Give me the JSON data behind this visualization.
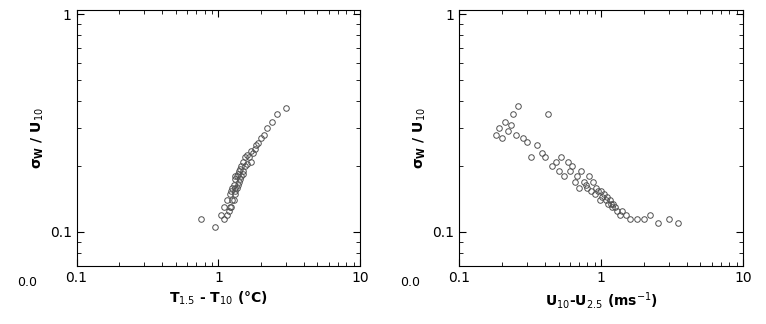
{
  "plot1": {
    "xlabel": "T$_{1.5}$ - T$_{10}$ (°C)",
    "ylabel": "$\\mathbf{\\sigma_W}$ / U$_{10}$",
    "xlim": [
      0.1,
      10
    ],
    "ylim": [
      0.07,
      1.05
    ],
    "x_data": [
      0.75,
      0.95,
      1.05,
      1.1,
      1.1,
      1.15,
      1.15,
      1.18,
      1.2,
      1.2,
      1.22,
      1.22,
      1.25,
      1.25,
      1.28,
      1.28,
      1.3,
      1.3,
      1.3,
      1.32,
      1.32,
      1.35,
      1.35,
      1.38,
      1.38,
      1.4,
      1.4,
      1.42,
      1.42,
      1.45,
      1.45,
      1.48,
      1.5,
      1.5,
      1.55,
      1.55,
      1.6,
      1.6,
      1.65,
      1.7,
      1.7,
      1.75,
      1.8,
      1.85,
      1.9,
      2.0,
      2.1,
      2.2,
      2.4,
      2.6,
      3.0
    ],
    "y_data": [
      0.115,
      0.105,
      0.12,
      0.115,
      0.13,
      0.12,
      0.14,
      0.125,
      0.13,
      0.15,
      0.13,
      0.155,
      0.14,
      0.16,
      0.14,
      0.165,
      0.15,
      0.16,
      0.18,
      0.155,
      0.175,
      0.16,
      0.18,
      0.165,
      0.185,
      0.17,
      0.19,
      0.175,
      0.195,
      0.18,
      0.2,
      0.185,
      0.19,
      0.21,
      0.2,
      0.22,
      0.205,
      0.225,
      0.22,
      0.21,
      0.235,
      0.23,
      0.24,
      0.25,
      0.255,
      0.27,
      0.28,
      0.3,
      0.32,
      0.35,
      0.37
    ]
  },
  "plot2": {
    "xlabel": "U$_{10}$-U$_{2.5}$ (ms$^{-1}$)",
    "ylabel": "$\\mathbf{\\sigma_W}$ / U$_{10}$",
    "xlim": [
      0.1,
      10
    ],
    "ylim": [
      0.07,
      1.05
    ],
    "x_data": [
      0.18,
      0.19,
      0.2,
      0.21,
      0.22,
      0.23,
      0.24,
      0.25,
      0.26,
      0.28,
      0.3,
      0.32,
      0.35,
      0.38,
      0.4,
      0.42,
      0.45,
      0.48,
      0.5,
      0.52,
      0.55,
      0.58,
      0.6,
      0.62,
      0.65,
      0.68,
      0.7,
      0.72,
      0.75,
      0.78,
      0.8,
      0.82,
      0.85,
      0.88,
      0.9,
      0.92,
      0.95,
      0.98,
      1.0,
      1.02,
      1.05,
      1.08,
      1.1,
      1.12,
      1.15,
      1.18,
      1.2,
      1.22,
      1.25,
      1.3,
      1.35,
      1.4,
      1.5,
      1.6,
      1.8,
      2.0,
      2.2,
      2.5,
      3.0,
      3.5
    ],
    "y_data": [
      0.28,
      0.3,
      0.27,
      0.32,
      0.29,
      0.31,
      0.35,
      0.28,
      0.38,
      0.27,
      0.26,
      0.22,
      0.25,
      0.23,
      0.22,
      0.35,
      0.2,
      0.21,
      0.19,
      0.22,
      0.18,
      0.21,
      0.19,
      0.2,
      0.17,
      0.18,
      0.16,
      0.19,
      0.17,
      0.165,
      0.16,
      0.18,
      0.155,
      0.17,
      0.15,
      0.16,
      0.155,
      0.14,
      0.155,
      0.145,
      0.15,
      0.14,
      0.145,
      0.135,
      0.14,
      0.135,
      0.13,
      0.135,
      0.13,
      0.125,
      0.12,
      0.125,
      0.12,
      0.115,
      0.115,
      0.115,
      0.12,
      0.11,
      0.115,
      0.11
    ]
  },
  "marker": "o",
  "marker_size": 4,
  "marker_face_color": "none",
  "marker_edge_color": "#505050",
  "marker_edge_width": 0.7,
  "background_color": "#ffffff"
}
